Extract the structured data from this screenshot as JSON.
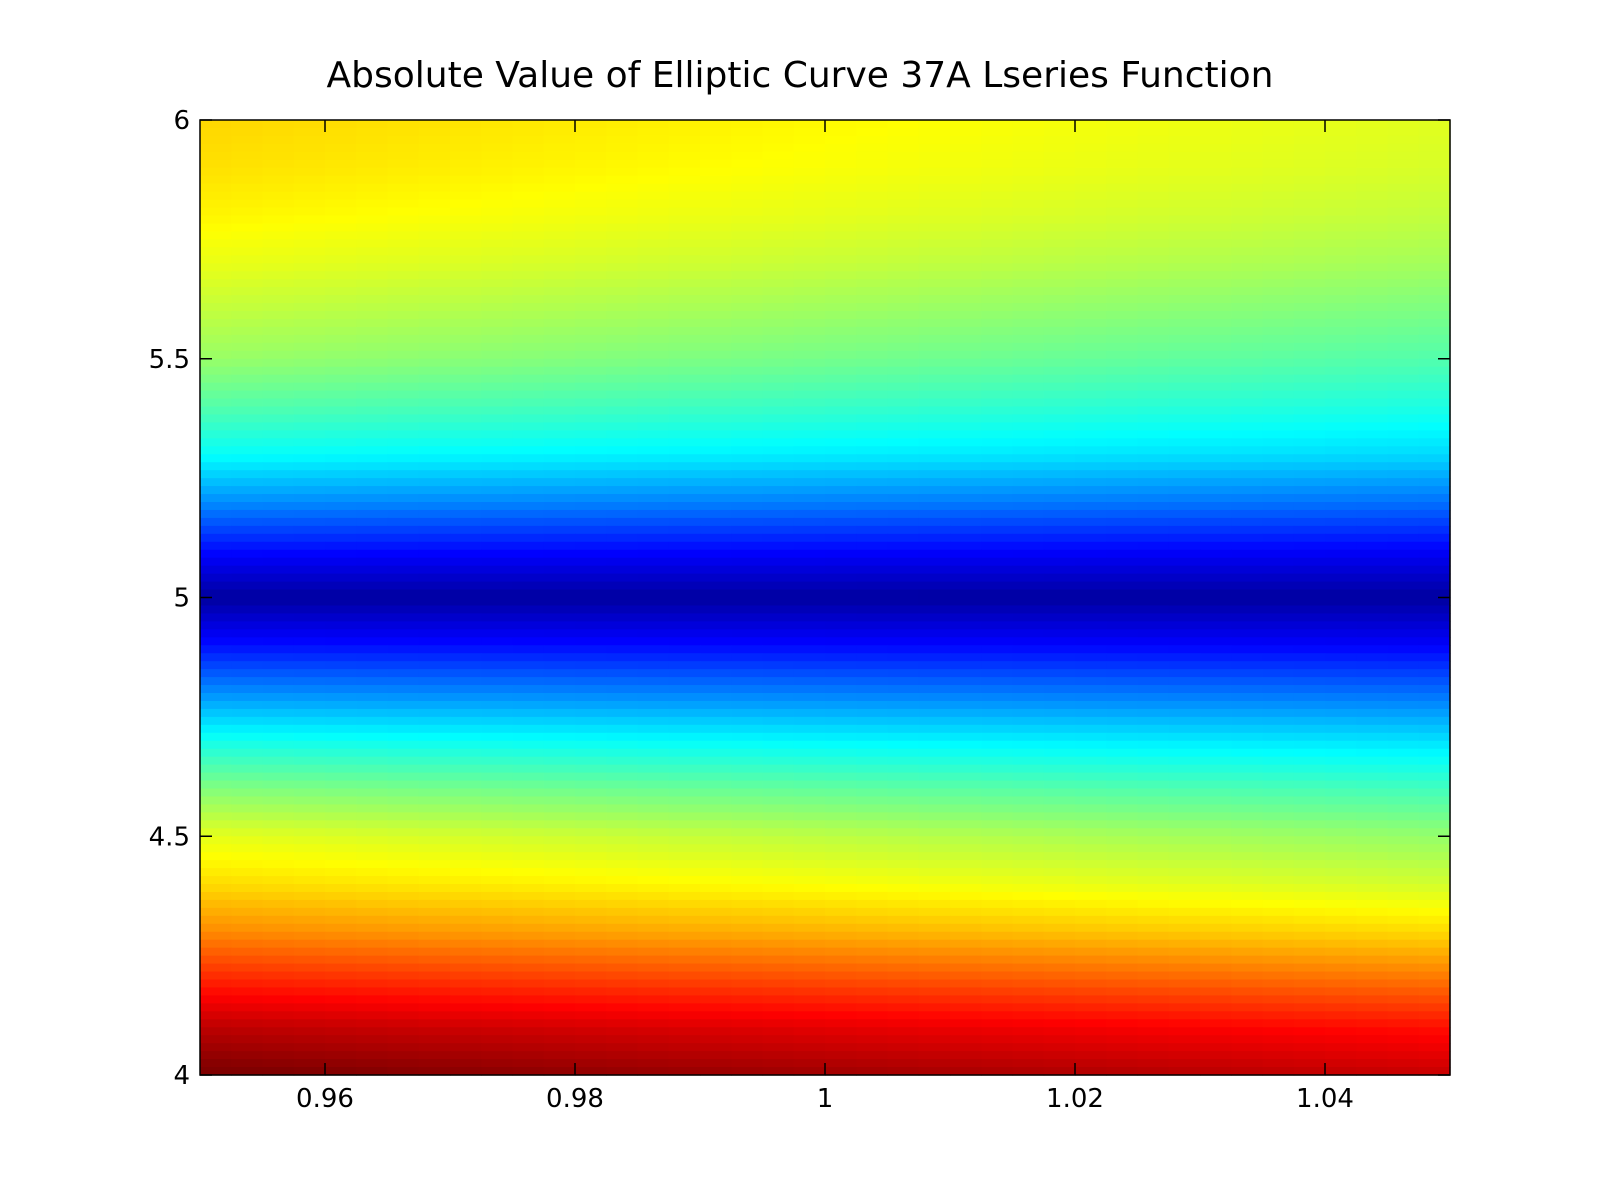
{
  "chart_data": {
    "type": "heatmap",
    "title": "Absolute Value of Elliptic Curve 37A Lseries Function",
    "xlabel": "",
    "ylabel": "",
    "xlim": [
      0.95,
      1.05
    ],
    "ylim": [
      4,
      6
    ],
    "xticks": [
      0.96,
      0.98,
      1.0,
      1.02,
      1.04
    ],
    "xtick_labels": [
      "0.96",
      "0.98",
      "1",
      "1.02",
      "1.04"
    ],
    "yticks": [
      4,
      4.5,
      5,
      5.5,
      6
    ],
    "ytick_labels": [
      "4",
      "4.5",
      "5",
      "5.5",
      "6"
    ],
    "colormap": "jet",
    "grid": false,
    "legend": "none",
    "value_field": {
      "description_of_shading": "jet colormap; minimum (dark blue) along y = 5, maximum (dark red) at lower-left corner",
      "y_profile": [
        {
          "y": 4.0,
          "v": 0.97
        },
        {
          "y": 4.1,
          "v": 0.9
        },
        {
          "y": 4.2,
          "v": 0.8
        },
        {
          "y": 4.3,
          "v": 0.7
        },
        {
          "y": 4.4,
          "v": 0.62
        },
        {
          "y": 4.5,
          "v": 0.56
        },
        {
          "y": 4.6,
          "v": 0.47
        },
        {
          "y": 4.7,
          "v": 0.37
        },
        {
          "y": 4.8,
          "v": 0.25
        },
        {
          "y": 4.9,
          "v": 0.13
        },
        {
          "y": 5.0,
          "v": 0.03
        },
        {
          "y": 5.1,
          "v": 0.13
        },
        {
          "y": 5.2,
          "v": 0.25
        },
        {
          "y": 5.3,
          "v": 0.36
        },
        {
          "y": 5.4,
          "v": 0.43
        },
        {
          "y": 5.5,
          "v": 0.49
        },
        {
          "y": 5.6,
          "v": 0.53
        },
        {
          "y": 5.7,
          "v": 0.57
        },
        {
          "y": 5.8,
          "v": 0.6
        },
        {
          "y": 5.9,
          "v": 0.62
        },
        {
          "y": 6.0,
          "v": 0.63
        }
      ],
      "x_gradient_below_5": -0.8,
      "x_gradient_above_5": -0.7
    }
  }
}
